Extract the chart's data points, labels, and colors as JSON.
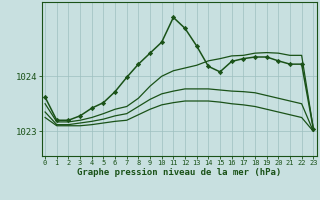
{
  "background_color": "#c8e0e0",
  "plot_bg_color": "#c8e0e0",
  "grid_color": "#9dbfbf",
  "line_color": "#1a5218",
  "title": "Graphe pression niveau de la mer (hPa)",
  "yticks": [
    1023,
    1024
  ],
  "ylim": [
    1022.55,
    1025.35
  ],
  "xlim": [
    -0.3,
    23.3
  ],
  "series": [
    {
      "x": [
        0,
        1,
        2,
        3,
        4,
        5,
        6,
        7,
        8,
        9,
        10,
        11,
        12,
        13,
        14,
        15,
        16,
        17,
        18,
        19,
        20,
        21,
        22,
        23
      ],
      "y": [
        1023.25,
        1023.1,
        1023.1,
        1023.1,
        1023.12,
        1023.15,
        1023.18,
        1023.2,
        1023.3,
        1023.4,
        1023.48,
        1023.52,
        1023.55,
        1023.55,
        1023.55,
        1023.53,
        1023.5,
        1023.48,
        1023.45,
        1023.4,
        1023.35,
        1023.3,
        1023.25,
        1023.0
      ],
      "marker": false,
      "linewidth": 0.9
    },
    {
      "x": [
        0,
        1,
        2,
        3,
        4,
        5,
        6,
        7,
        8,
        9,
        10,
        11,
        12,
        13,
        14,
        15,
        16,
        17,
        18,
        19,
        20,
        21,
        22,
        23
      ],
      "y": [
        1023.35,
        1023.12,
        1023.12,
        1023.15,
        1023.18,
        1023.22,
        1023.28,
        1023.32,
        1023.45,
        1023.58,
        1023.68,
        1023.73,
        1023.77,
        1023.77,
        1023.77,
        1023.75,
        1023.73,
        1023.72,
        1023.7,
        1023.65,
        1023.6,
        1023.55,
        1023.5,
        1023.0
      ],
      "marker": false,
      "linewidth": 0.9
    },
    {
      "x": [
        0,
        1,
        2,
        3,
        4,
        5,
        6,
        7,
        8,
        9,
        10,
        11,
        12,
        13,
        14,
        15,
        16,
        17,
        18,
        19,
        20,
        21,
        22,
        23
      ],
      "y": [
        1023.5,
        1023.17,
        1023.17,
        1023.2,
        1023.25,
        1023.32,
        1023.4,
        1023.45,
        1023.6,
        1023.82,
        1024.0,
        1024.1,
        1024.15,
        1024.2,
        1024.28,
        1024.32,
        1024.37,
        1024.38,
        1024.42,
        1024.43,
        1024.42,
        1024.38,
        1024.38,
        1023.05
      ],
      "marker": false,
      "linewidth": 0.9
    },
    {
      "x": [
        0,
        1,
        2,
        3,
        4,
        5,
        6,
        7,
        8,
        9,
        10,
        11,
        12,
        13,
        14,
        15,
        16,
        17,
        18,
        19,
        20,
        21,
        22,
        23
      ],
      "y": [
        1023.62,
        1023.2,
        1023.2,
        1023.28,
        1023.42,
        1023.52,
        1023.72,
        1023.98,
        1024.22,
        1024.42,
        1024.62,
        1025.07,
        1024.87,
        1024.55,
        1024.18,
        1024.08,
        1024.27,
        1024.32,
        1024.35,
        1024.35,
        1024.28,
        1024.22,
        1024.22,
        1023.05
      ],
      "marker": true,
      "linewidth": 1.1
    }
  ]
}
